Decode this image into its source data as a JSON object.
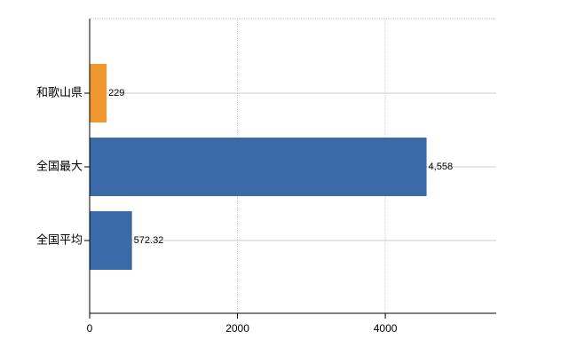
{
  "chart_data": {
    "type": "bar",
    "orientation": "horizontal",
    "categories": [
      "和歌山県",
      "全国最大",
      "全国平均"
    ],
    "values": [
      229,
      4558,
      572.32
    ],
    "value_labels": [
      "229",
      "4,558",
      "572.32"
    ],
    "colors": [
      "#f0962e",
      "#3a6aa8",
      "#3a6aa8"
    ],
    "xlim": [
      0,
      5500
    ],
    "xticks": [
      0,
      2000,
      4000
    ],
    "grid": true
  }
}
